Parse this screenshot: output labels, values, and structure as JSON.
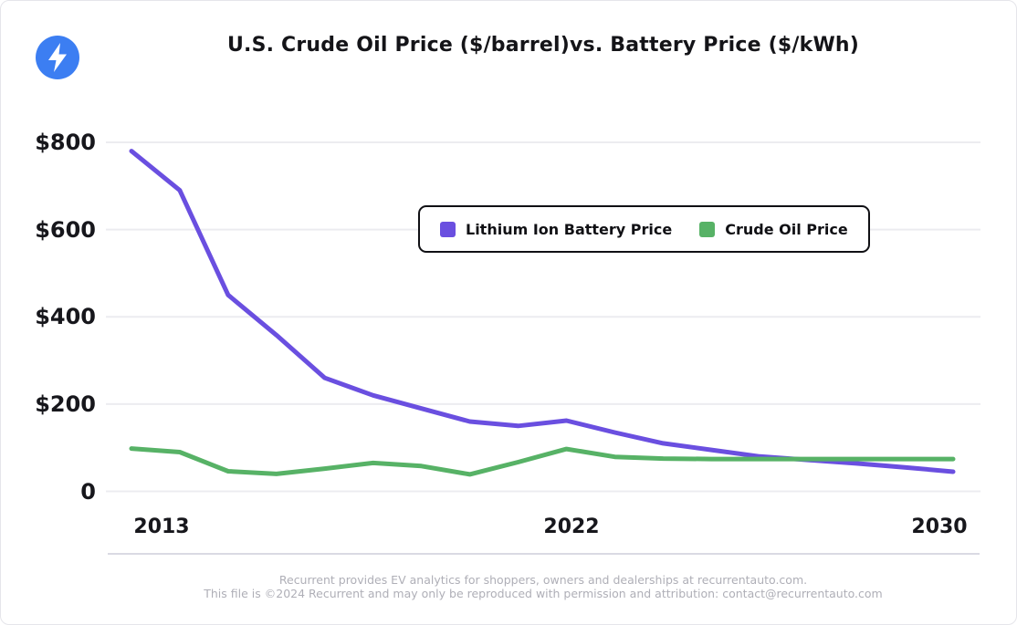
{
  "brand": {
    "name": "Recurrent",
    "logo_icon": "lightning-bolt",
    "logo_color": "#3C7EF2"
  },
  "header": {
    "title": "U.S. Crude Oil Price ($/barrel)vs. Battery Price ($/kWh)"
  },
  "chart_data": {
    "type": "line",
    "title": "U.S. Crude Oil Price ($/barrel)vs. Battery Price ($/kWh)",
    "x": [
      2013,
      2014,
      2015,
      2016,
      2017,
      2018,
      2019,
      2020,
      2021,
      2022,
      2023,
      2024,
      2025,
      2026,
      2027,
      2028,
      2029,
      2030
    ],
    "series": [
      {
        "name": "Lithium Ion Battery Price",
        "unit": "$/kWh",
        "color": "#6A4FE0",
        "values": [
          780,
          690,
          450,
          358,
          260,
          220,
          190,
          160,
          150,
          162,
          135,
          110,
          95,
          80,
          72,
          64,
          55,
          45
        ]
      },
      {
        "name": "Crude Oil Price",
        "unit": "$/barrel",
        "color": "#57B266",
        "values": [
          98,
          90,
          46,
          40,
          52,
          65,
          58,
          39,
          67,
          97,
          79,
          75,
          74,
          74,
          74,
          74,
          74,
          74
        ]
      }
    ],
    "ylim": [
      0,
      800
    ],
    "yticks": [
      {
        "value": 800,
        "label": "$800"
      },
      {
        "value": 600,
        "label": "$600"
      },
      {
        "value": 400,
        "label": "$400"
      },
      {
        "value": 200,
        "label": "$200"
      },
      {
        "value": 0,
        "label": "0"
      }
    ],
    "xticks": [
      {
        "value": 2013,
        "label": "2013"
      },
      {
        "value": 2022,
        "label": "2022"
      },
      {
        "value": 2030,
        "label": "2030"
      }
    ],
    "grid": "horizontal",
    "legend_position": "top-center-overlay",
    "colors": {
      "gridline": "#ECECF0",
      "axis_text": "#17171C",
      "legend_border": "#101014"
    }
  },
  "footer": {
    "line1": "Recurrent provides EV analytics for shoppers, owners and dealerships at recurrentauto.com.",
    "line2": "This file is ©2024 Recurrent and may only be reproduced with permission and attribution: contact@recurrentauto.com"
  }
}
